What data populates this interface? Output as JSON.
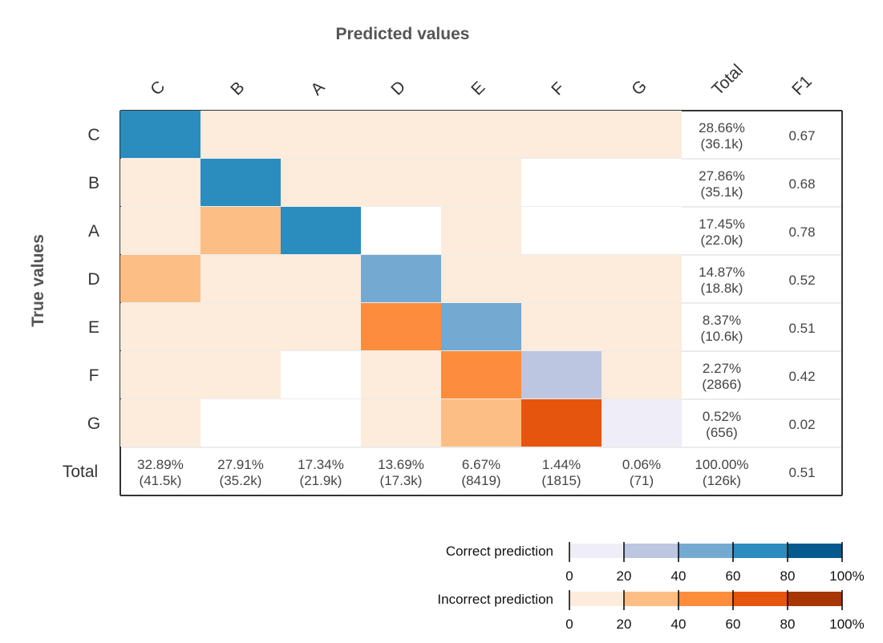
{
  "chart_data": {
    "type": "heatmap",
    "title": "",
    "xlabel": "Predicted values",
    "ylabel": "True values",
    "columns": [
      "C",
      "B",
      "A",
      "D",
      "E",
      "F",
      "G"
    ],
    "rows": [
      "C",
      "B",
      "A",
      "D",
      "E",
      "F",
      "G"
    ],
    "total_label": "Total",
    "f1_label": "F1",
    "cell_bins": [
      [
        4,
        1,
        1,
        1,
        1,
        1,
        1
      ],
      [
        1,
        4,
        1,
        1,
        1,
        0,
        0
      ],
      [
        1,
        2,
        4,
        0,
        1,
        0,
        0
      ],
      [
        2,
        1,
        1,
        3,
        1,
        1,
        1
      ],
      [
        1,
        1,
        1,
        3,
        3,
        1,
        1
      ],
      [
        1,
        1,
        0,
        1,
        3,
        2,
        1
      ],
      [
        1,
        0,
        0,
        1,
        2,
        4,
        1
      ]
    ],
    "row_totals": [
      {
        "pct": "28.66%",
        "count": "(36.1k)"
      },
      {
        "pct": "27.86%",
        "count": "(35.1k)"
      },
      {
        "pct": "17.45%",
        "count": "(22.0k)"
      },
      {
        "pct": "14.87%",
        "count": "(18.8k)"
      },
      {
        "pct": "8.37%",
        "count": "(10.6k)"
      },
      {
        "pct": "2.27%",
        "count": "(2866)"
      },
      {
        "pct": "0.52%",
        "count": "(656)"
      }
    ],
    "row_f1": [
      "0.67",
      "0.68",
      "0.78",
      "0.52",
      "0.51",
      "0.42",
      "0.02"
    ],
    "col_totals": [
      {
        "pct": "32.89%",
        "count": "(41.5k)"
      },
      {
        "pct": "27.91%",
        "count": "(35.2k)"
      },
      {
        "pct": "17.34%",
        "count": "(21.9k)"
      },
      {
        "pct": "13.69%",
        "count": "(17.3k)"
      },
      {
        "pct": "6.67%",
        "count": "(8419)"
      },
      {
        "pct": "1.44%",
        "count": "(1815)"
      },
      {
        "pct": "0.06%",
        "count": "(71)"
      }
    ],
    "grand_total": {
      "pct": "100.00%",
      "count": "(126k)"
    },
    "overall_f1": "0.51",
    "legend": [
      {
        "label": "Correct prediction",
        "colors": [
          "#efedf5",
          "#bcc6e0",
          "#74a9d2",
          "#2b8cbe",
          "#045a8d"
        ]
      },
      {
        "label": "Incorrect prediction",
        "colors": [
          "#fdebdc",
          "#fdbe85",
          "#fd8d3c",
          "#e6550d",
          "#a63603"
        ]
      }
    ],
    "legend_ticks": [
      "0",
      "20",
      "40",
      "60",
      "80",
      "100%"
    ],
    "colors": {
      "correct": [
        "#efedf5",
        "#bcc6e0",
        "#74a9d2",
        "#2b8cbe",
        "#045a8d"
      ],
      "incorrect": [
        "#fdebdc",
        "#fdbe85",
        "#fd8d3c",
        "#e6550d",
        "#a63603"
      ],
      "empty": "#ffffff",
      "gridline": "#e6e6e6",
      "axis": "#333333"
    }
  }
}
